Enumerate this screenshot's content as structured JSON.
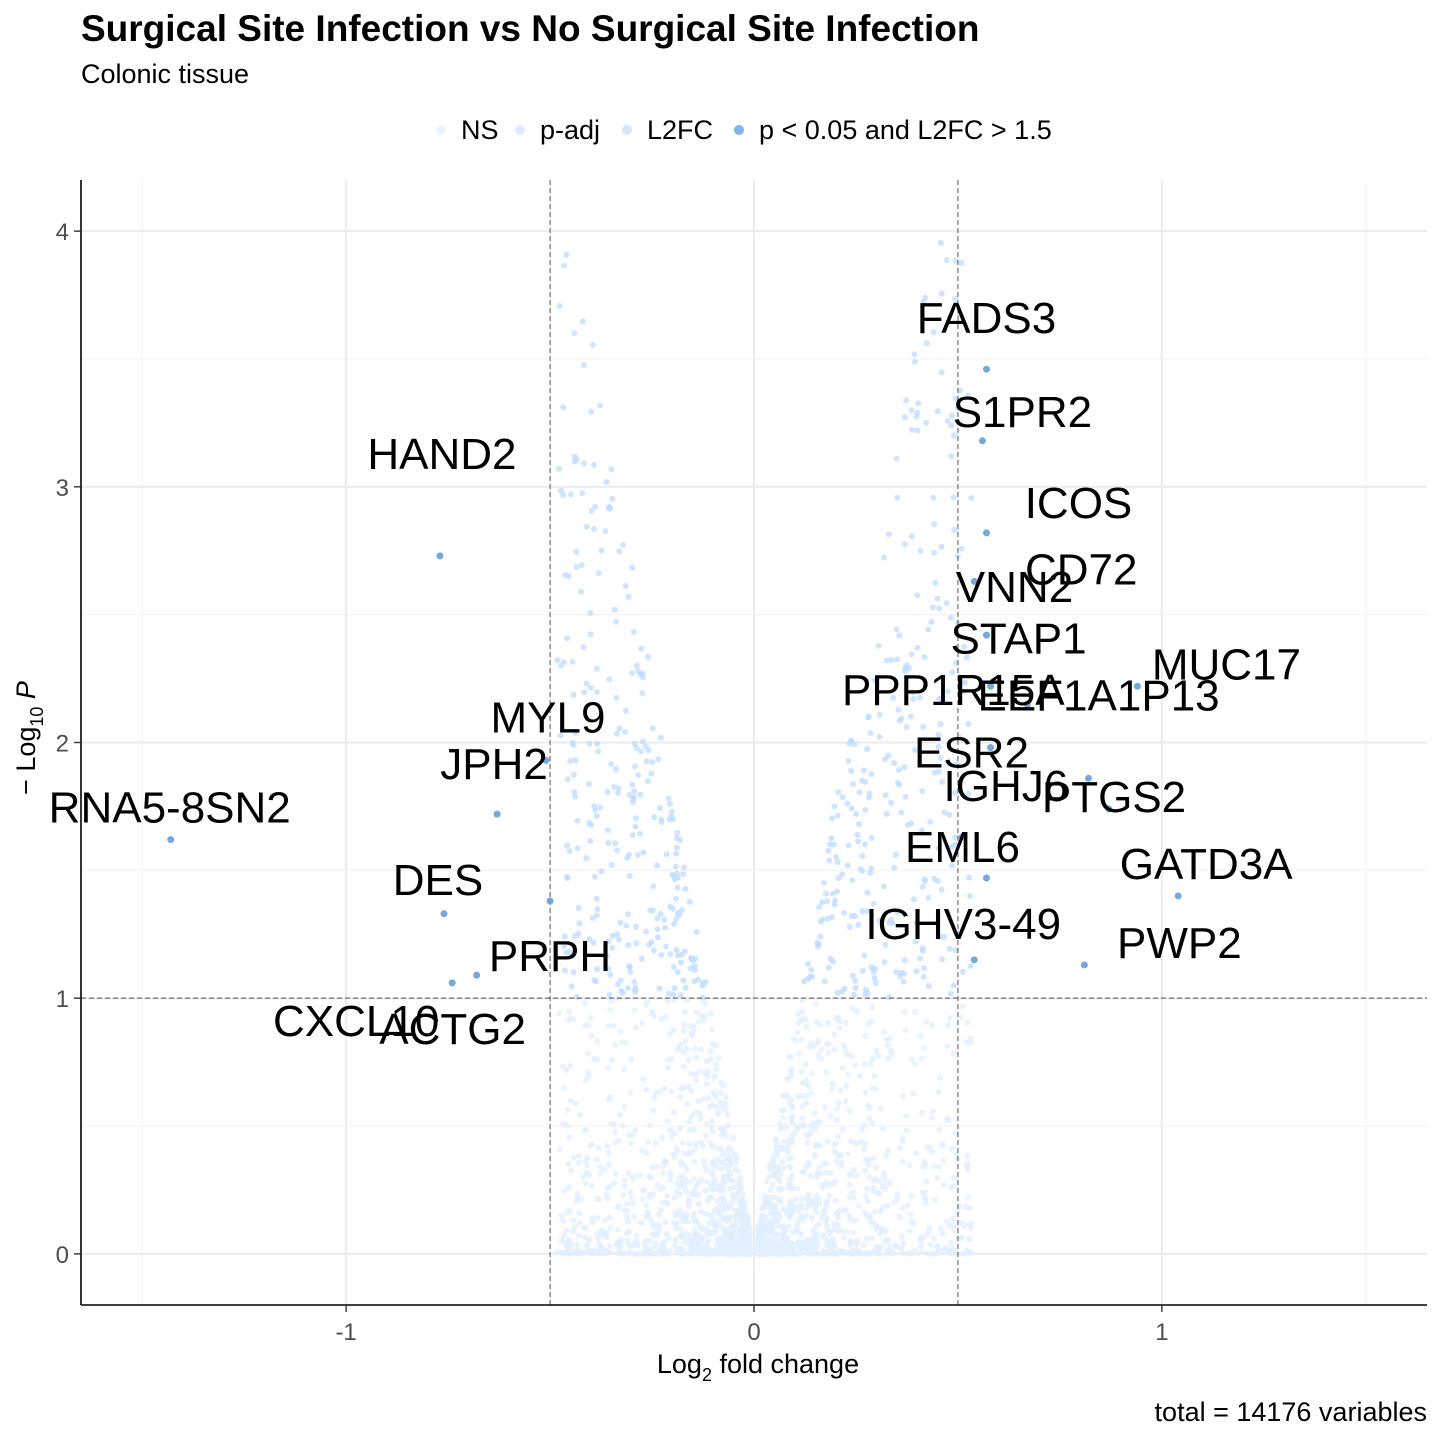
{
  "chart_data": {
    "type": "scatter",
    "title": "Surgical Site Infection vs No Surgical Site Infection",
    "subtitle": "Colonic tissue",
    "xlabel_main": "Log",
    "xlabel_sub": "2",
    "xlabel_rest": " fold change",
    "ylabel_prefix": "− Log",
    "ylabel_sub": "10",
    "ylabel_p": "P",
    "caption": "total = 14176 variables",
    "xlim": [
      -1.65,
      1.65
    ],
    "ylim": [
      -0.2,
      4.2
    ],
    "x_ticks": [
      -1,
      0,
      1
    ],
    "x_tick_labels": [
      "-1",
      "0",
      "1"
    ],
    "y_ticks": [
      0,
      1,
      2,
      3,
      4
    ],
    "y_tick_labels": [
      "0",
      "1",
      "2",
      "3",
      "4"
    ],
    "grid": true,
    "cutoffs": {
      "x": [
        -0.5,
        0.5
      ],
      "y": 1
    },
    "legend": {
      "position": "top",
      "entries": [
        {
          "label": "NS",
          "color": "#eaf3ff"
        },
        {
          "label": "p-adj",
          "color": "#dcecff"
        },
        {
          "label": "L2FC",
          "color": "#d4e7fb"
        },
        {
          "label": "p < 0.05 and L2FC > 1.5",
          "color": "#7fb4e6"
        }
      ]
    },
    "colors": {
      "ns": "#e2efff",
      "padj": "#bfdcff",
      "sig": "#6fa3dc"
    },
    "labeled_points": [
      {
        "gene": "FADS3",
        "x": 0.57,
        "y": 3.46
      },
      {
        "gene": "S1PR2",
        "x": 0.56,
        "y": 3.18
      },
      {
        "gene": "ICOS",
        "x": 0.57,
        "y": 2.82
      },
      {
        "gene": "CD72",
        "x": 0.54,
        "y": 2.63
      },
      {
        "gene": "VNN2",
        "x": 0.57,
        "y": 2.42
      },
      {
        "gene": "STAP1",
        "x": 0.58,
        "y": 2.22
      },
      {
        "gene": "MUC17",
        "x": 0.94,
        "y": 2.22
      },
      {
        "gene": "PPP1R15A",
        "x": 0.67,
        "y": 2.15
      },
      {
        "gene": "EEF1A1P13",
        "x": 0.58,
        "y": 1.98
      },
      {
        "gene": "ESR2",
        "x": 0.82,
        "y": 1.86
      },
      {
        "gene": "IGHJ6",
        "x": 0.87,
        "y": 1.74
      },
      {
        "gene": "PTGS2",
        "x": 0.51,
        "y": 1.63
      },
      {
        "gene": "GATD3A",
        "x": 1.04,
        "y": 1.4
      },
      {
        "gene": "EML6",
        "x": 0.57,
        "y": 1.47
      },
      {
        "gene": "IGHV3-49",
        "x": 0.54,
        "y": 1.15
      },
      {
        "gene": "PWP2",
        "x": 0.81,
        "y": 1.13
      },
      {
        "gene": "HAND2",
        "x": -0.77,
        "y": 2.73
      },
      {
        "gene": "MYL9",
        "x": -0.51,
        "y": 1.93
      },
      {
        "gene": "JPH2",
        "x": -0.63,
        "y": 1.72
      },
      {
        "gene": "RNA5-8SN2",
        "x": -1.43,
        "y": 1.62
      },
      {
        "gene": "DES",
        "x": -0.76,
        "y": 1.33
      },
      {
        "gene": "PRPH",
        "x": -0.5,
        "y": 1.38
      },
      {
        "gene": "ACTG2",
        "x": -0.68,
        "y": 1.09
      },
      {
        "gene": "CXCL10",
        "x": -0.74,
        "y": 1.06
      }
    ]
  }
}
